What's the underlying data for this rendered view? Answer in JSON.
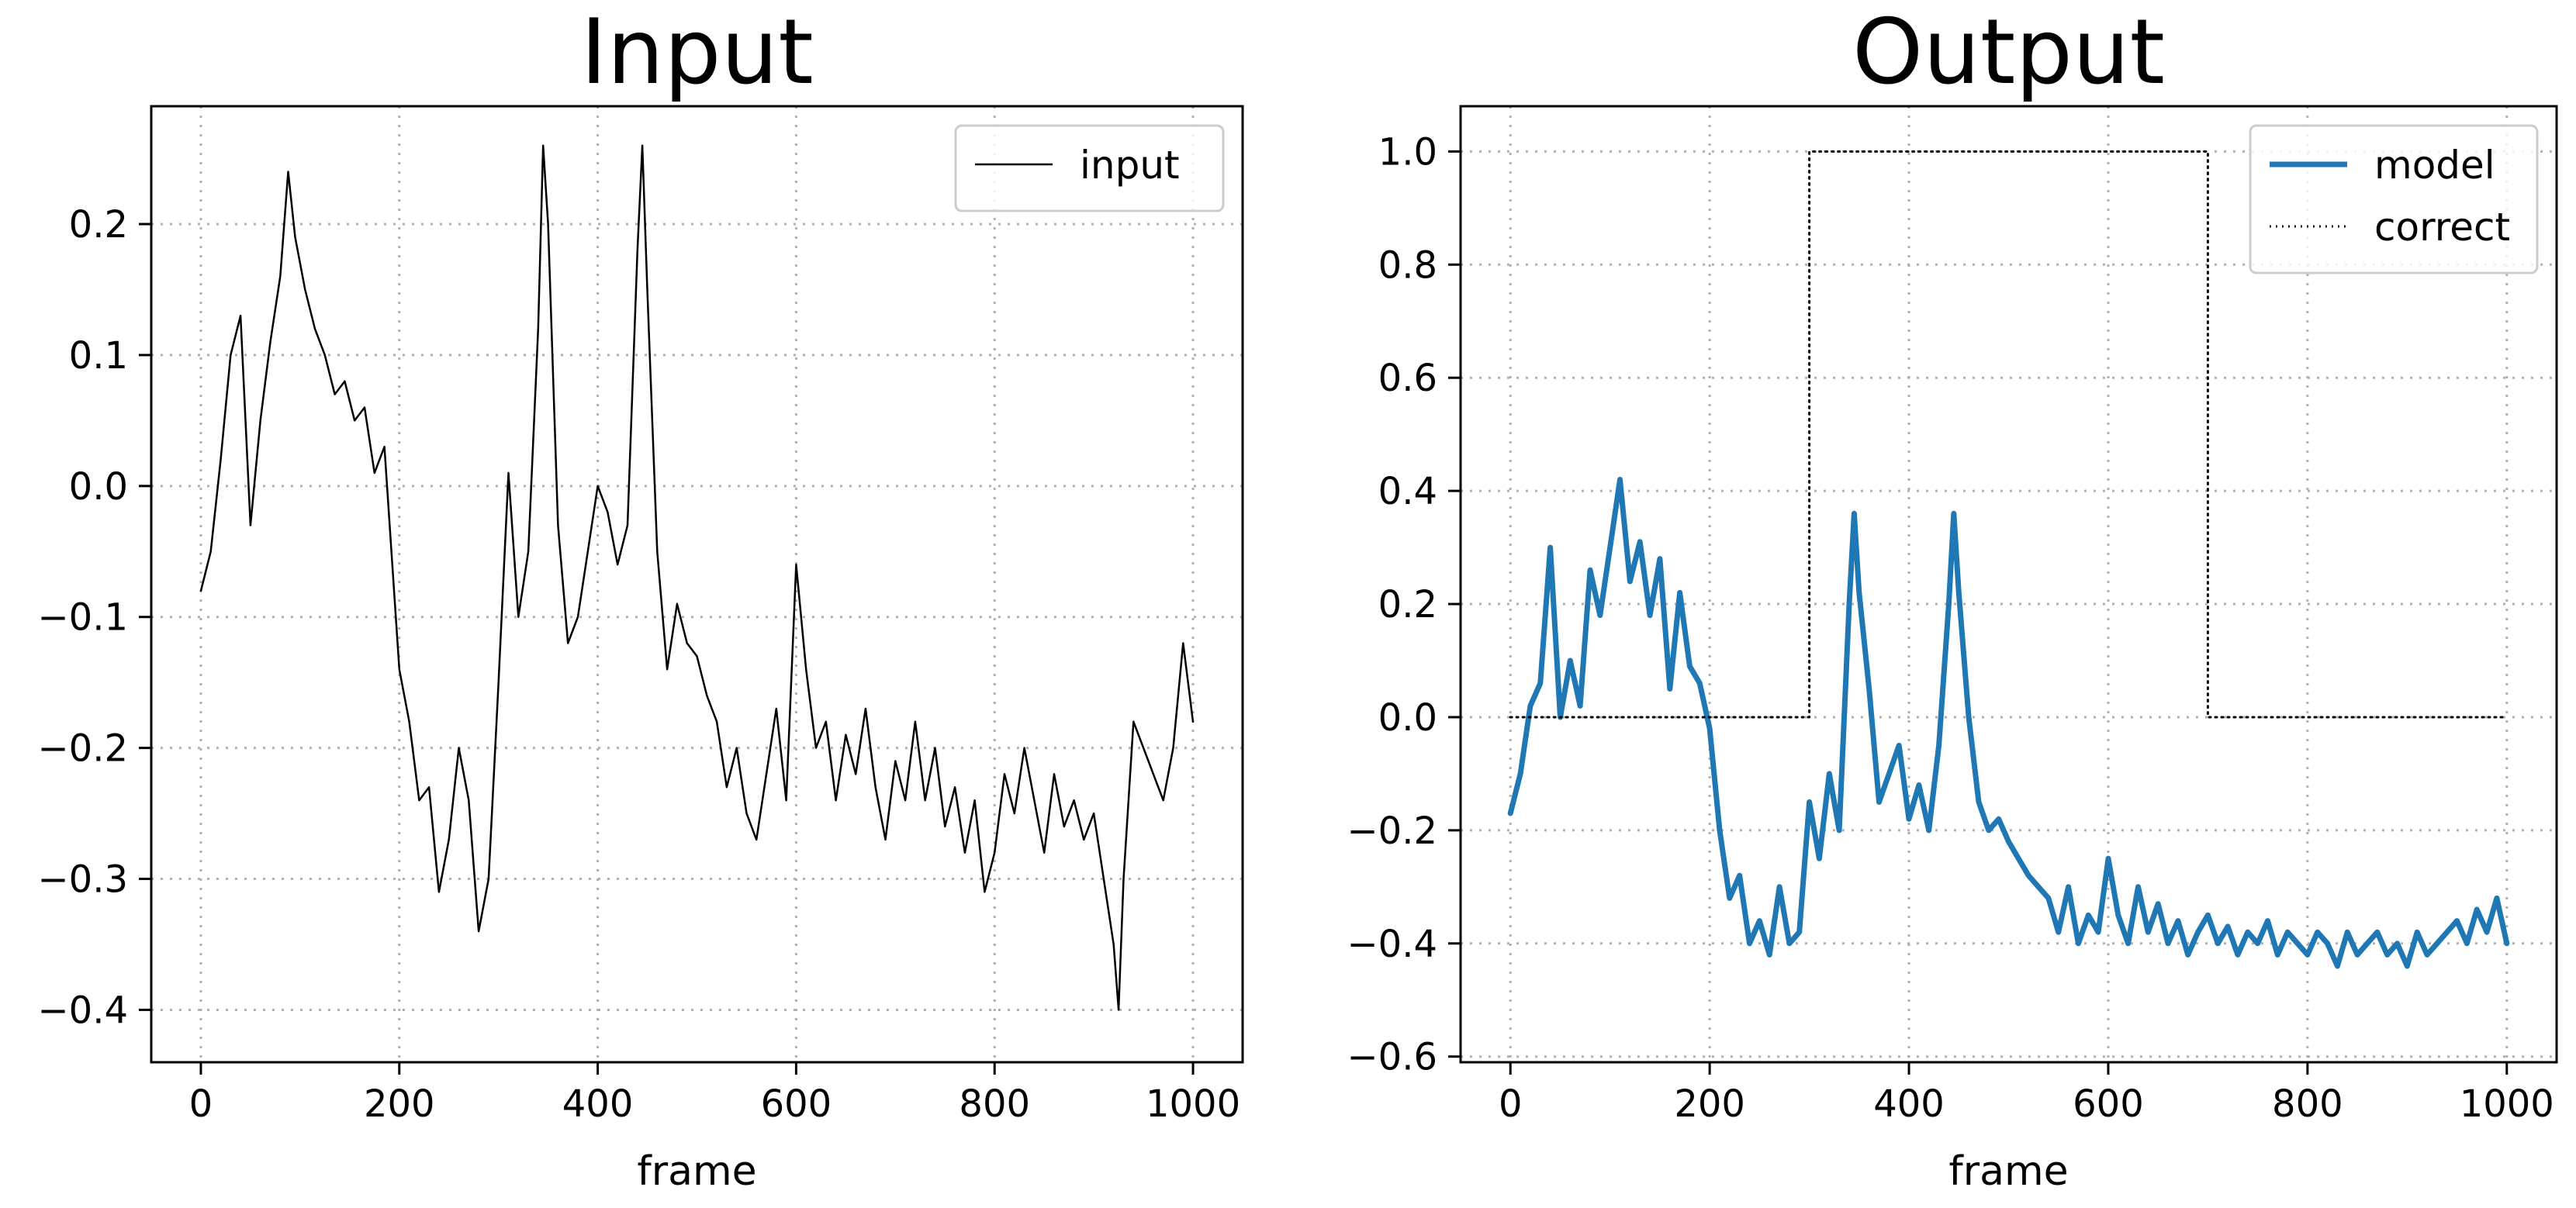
{
  "chart_data": [
    {
      "type": "line",
      "title": "Input",
      "xlabel": "frame",
      "ylabel": "",
      "xlim": [
        -50,
        1050
      ],
      "ylim": [
        -0.44,
        0.29
      ],
      "xticks": [
        0,
        200,
        400,
        600,
        800,
        1000
      ],
      "xtick_labels": [
        "0",
        "200",
        "400",
        "600",
        "800",
        "1000"
      ],
      "yticks": [
        -0.4,
        -0.3,
        -0.2,
        -0.1,
        0.0,
        0.1,
        0.2
      ],
      "ytick_labels": [
        "−0.4",
        "−0.3",
        "−0.2",
        "−0.1",
        "0.0",
        "0.1",
        "0.2"
      ],
      "grid": true,
      "legend": "top-right",
      "series": [
        {
          "name": "input",
          "color": "#000000",
          "style": "solid",
          "x": [
            0,
            10,
            20,
            30,
            40,
            50,
            60,
            70,
            80,
            88,
            95,
            105,
            115,
            125,
            135,
            145,
            155,
            165,
            175,
            185,
            200,
            210,
            220,
            230,
            240,
            250,
            260,
            270,
            280,
            290,
            300,
            310,
            320,
            330,
            340,
            345,
            350,
            360,
            370,
            380,
            390,
            400,
            410,
            420,
            430,
            440,
            445,
            450,
            460,
            470,
            480,
            490,
            500,
            510,
            520,
            530,
            540,
            550,
            560,
            570,
            580,
            590,
            600,
            610,
            620,
            630,
            640,
            650,
            660,
            670,
            680,
            690,
            700,
            710,
            720,
            730,
            740,
            750,
            760,
            770,
            780,
            790,
            800,
            810,
            820,
            830,
            840,
            850,
            860,
            870,
            880,
            890,
            900,
            910,
            920,
            925,
            930,
            940,
            950,
            960,
            970,
            980,
            990,
            1000
          ],
          "y": [
            -0.08,
            -0.05,
            0.02,
            0.1,
            0.13,
            -0.03,
            0.05,
            0.11,
            0.16,
            0.24,
            0.19,
            0.15,
            0.12,
            0.1,
            0.07,
            0.08,
            0.05,
            0.06,
            0.01,
            0.03,
            -0.14,
            -0.18,
            -0.24,
            -0.23,
            -0.31,
            -0.27,
            -0.2,
            -0.24,
            -0.34,
            -0.3,
            -0.15,
            0.01,
            -0.1,
            -0.05,
            0.12,
            0.26,
            0.2,
            -0.03,
            -0.12,
            -0.1,
            -0.05,
            0.0,
            -0.02,
            -0.06,
            -0.03,
            0.18,
            0.26,
            0.15,
            -0.05,
            -0.14,
            -0.09,
            -0.12,
            -0.13,
            -0.16,
            -0.18,
            -0.23,
            -0.2,
            -0.25,
            -0.27,
            -0.22,
            -0.17,
            -0.24,
            -0.06,
            -0.14,
            -0.2,
            -0.18,
            -0.24,
            -0.19,
            -0.22,
            -0.17,
            -0.23,
            -0.27,
            -0.21,
            -0.24,
            -0.18,
            -0.24,
            -0.2,
            -0.26,
            -0.23,
            -0.28,
            -0.24,
            -0.31,
            -0.28,
            -0.22,
            -0.25,
            -0.2,
            -0.24,
            -0.28,
            -0.22,
            -0.26,
            -0.24,
            -0.27,
            -0.25,
            -0.3,
            -0.35,
            -0.4,
            -0.3,
            -0.18,
            -0.2,
            -0.22,
            -0.24,
            -0.2,
            -0.12,
            -0.18
          ]
        }
      ]
    },
    {
      "type": "line",
      "title": "Output",
      "xlabel": "frame",
      "ylabel": "",
      "xlim": [
        -50,
        1050
      ],
      "ylim": [
        -0.61,
        1.08
      ],
      "xticks": [
        0,
        200,
        400,
        600,
        800,
        1000
      ],
      "xtick_labels": [
        "0",
        "200",
        "400",
        "600",
        "800",
        "1000"
      ],
      "yticks": [
        -0.6,
        -0.4,
        -0.2,
        0.0,
        0.2,
        0.4,
        0.6,
        0.8,
        1.0
      ],
      "ytick_labels": [
        "−0.6",
        "−0.4",
        "−0.2",
        "0.0",
        "0.2",
        "0.4",
        "0.6",
        "0.8",
        "1.0"
      ],
      "grid": true,
      "legend": "top-right",
      "series": [
        {
          "name": "model",
          "color": "#1f77b4",
          "style": "solid",
          "x": [
            0,
            10,
            20,
            30,
            40,
            50,
            60,
            70,
            80,
            90,
            100,
            110,
            120,
            130,
            140,
            150,
            160,
            170,
            180,
            190,
            200,
            210,
            220,
            230,
            240,
            250,
            260,
            270,
            280,
            290,
            300,
            310,
            320,
            330,
            340,
            345,
            350,
            360,
            370,
            380,
            390,
            400,
            410,
            420,
            430,
            440,
            445,
            450,
            460,
            470,
            480,
            490,
            500,
            510,
            520,
            530,
            540,
            550,
            560,
            570,
            580,
            590,
            600,
            610,
            620,
            630,
            640,
            650,
            660,
            670,
            680,
            690,
            700,
            710,
            720,
            730,
            740,
            750,
            760,
            770,
            780,
            790,
            800,
            810,
            820,
            830,
            840,
            850,
            860,
            870,
            880,
            890,
            900,
            910,
            920,
            930,
            940,
            950,
            960,
            970,
            980,
            990,
            1000
          ],
          "y": [
            -0.17,
            -0.1,
            0.02,
            0.06,
            0.3,
            0.0,
            0.1,
            0.02,
            0.26,
            0.18,
            0.3,
            0.42,
            0.24,
            0.31,
            0.18,
            0.28,
            0.05,
            0.22,
            0.09,
            0.06,
            -0.02,
            -0.2,
            -0.32,
            -0.28,
            -0.4,
            -0.36,
            -0.42,
            -0.3,
            -0.4,
            -0.38,
            -0.15,
            -0.25,
            -0.1,
            -0.2,
            0.2,
            0.36,
            0.22,
            0.05,
            -0.15,
            -0.1,
            -0.05,
            -0.18,
            -0.12,
            -0.2,
            -0.05,
            0.2,
            0.36,
            0.22,
            0.0,
            -0.15,
            -0.2,
            -0.18,
            -0.22,
            -0.25,
            -0.28,
            -0.3,
            -0.32,
            -0.38,
            -0.3,
            -0.4,
            -0.35,
            -0.38,
            -0.25,
            -0.35,
            -0.4,
            -0.3,
            -0.38,
            -0.33,
            -0.4,
            -0.36,
            -0.42,
            -0.38,
            -0.35,
            -0.4,
            -0.37,
            -0.42,
            -0.38,
            -0.4,
            -0.36,
            -0.42,
            -0.38,
            -0.4,
            -0.42,
            -0.38,
            -0.4,
            -0.44,
            -0.38,
            -0.42,
            -0.4,
            -0.38,
            -0.42,
            -0.4,
            -0.44,
            -0.38,
            -0.42,
            -0.4,
            -0.38,
            -0.36,
            -0.4,
            -0.34,
            -0.38,
            -0.32,
            -0.4
          ]
        },
        {
          "name": "correct",
          "color": "#000000",
          "style": "dotted",
          "x": [
            0,
            300,
            300,
            700,
            700,
            1000
          ],
          "y": [
            0,
            0,
            1,
            1,
            0,
            0
          ]
        }
      ]
    }
  ]
}
